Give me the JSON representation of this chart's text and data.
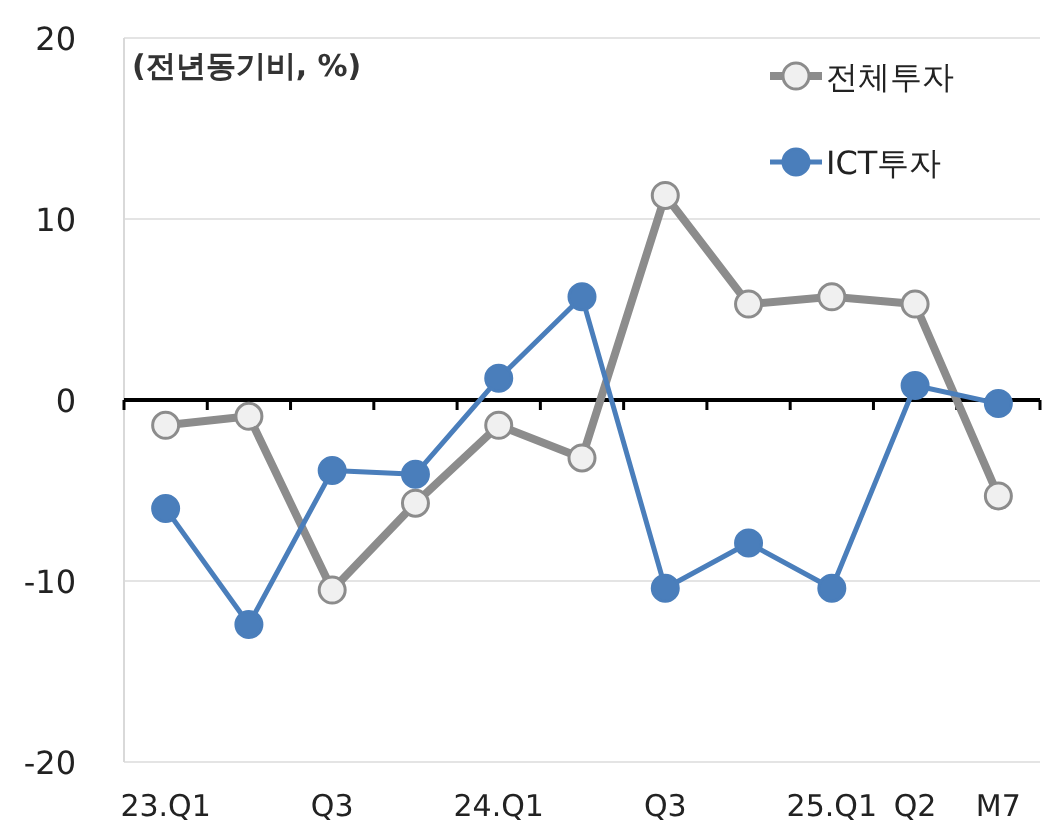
{
  "chart_data": {
    "type": "line",
    "ylabel": "(전년동기비, %)",
    "categories": [
      "23.Q1",
      null,
      "Q3",
      null,
      "24.Q1",
      null,
      "Q3",
      null,
      "25.Q1",
      "Q2",
      "M7"
    ],
    "series": [
      {
        "name": "전체투자",
        "color": "#8c8c8c",
        "values": [
          -1.4,
          -0.9,
          -10.5,
          -5.7,
          -1.4,
          -3.2,
          11.3,
          5.3,
          5.7,
          5.3,
          -5.3
        ]
      },
      {
        "name": "ICT투자",
        "color": "#4a7ebb",
        "values": [
          -6.0,
          -12.4,
          -3.9,
          -4.1,
          1.2,
          5.7,
          -10.4,
          -7.9,
          -10.4,
          0.8,
          -0.2
        ]
      }
    ],
    "ylim": [
      -20,
      20
    ],
    "yticks": [
      -20,
      -10,
      0,
      10,
      20
    ],
    "grid": "y",
    "legend": "top right",
    "marker": "circle",
    "line_style": "solid"
  }
}
